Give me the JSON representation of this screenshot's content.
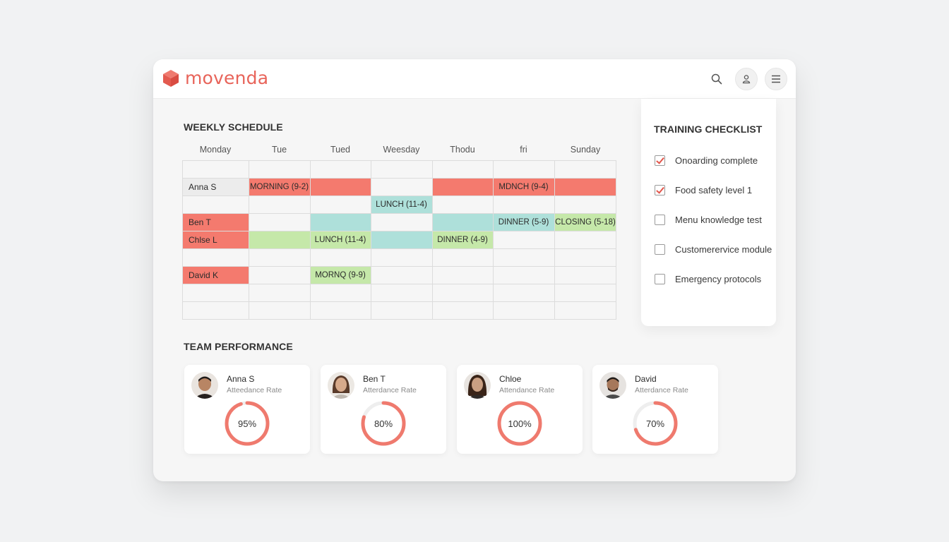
{
  "app": {
    "brand": "movenda",
    "colors": {
      "accent": "#e8645a",
      "shift_red": "#f47a6e",
      "shift_teal": "#aee0da",
      "shift_green": "#c5e8a9"
    }
  },
  "topbar": {
    "icons": [
      "search-icon",
      "user-icon",
      "menu-icon"
    ]
  },
  "schedule": {
    "title": "WEEKLY SCHEDULE",
    "days": [
      "Monday",
      "Tue",
      "Tued",
      "Weesday",
      "Thodu",
      "fri",
      "Sunday"
    ],
    "cells": {
      "anna_name": "Anna S",
      "anna_mon": "MORNING (9-2)",
      "anna_fri": "MDNCH (9-4)",
      "lunch_wed": "LUNCH (11-4)",
      "ben_name": "Ben T",
      "ben_fri": "DINNER (5-9)",
      "ben_sun": "CLOSING (5-18)",
      "chloe_name": "Chlse L",
      "chloe_tue": "LUNCH (11-4)",
      "chloe_thu": "DINNER (4-9)",
      "david_name": "David K",
      "david_tue": "MORNQ (9-9)"
    }
  },
  "checklist": {
    "title": "TRAINING CHECKLIST",
    "items": [
      {
        "label": "Onoarding complete",
        "checked": true
      },
      {
        "label": "Food safety level 1",
        "checked": true
      },
      {
        "label": "Menu knowledge test",
        "checked": false
      },
      {
        "label": "Customerervice module",
        "checked": false
      },
      {
        "label": "Emergency protocols",
        "checked": false
      }
    ]
  },
  "performance": {
    "title": "TEAM PERFORMANCE",
    "cards": [
      {
        "name": "Anna S",
        "sub": "Atteedance Rate",
        "value_label": "95%",
        "value": 95
      },
      {
        "name": "Ben T",
        "sub": "Atterdance Rate",
        "value_label": "80%",
        "value": 80
      },
      {
        "name": "Chloe",
        "sub": "Attendance Rate",
        "value_label": "100%",
        "value": 100
      },
      {
        "name": "David",
        "sub": "Atterdance Rate",
        "value_label": "70%",
        "value": 70
      }
    ]
  }
}
